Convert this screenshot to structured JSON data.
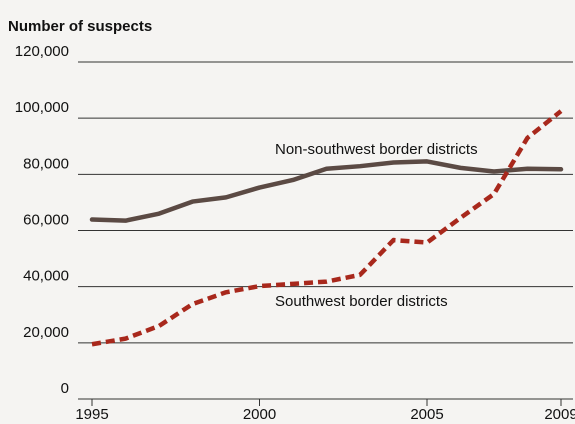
{
  "chart_data": {
    "type": "line",
    "title": "Number of suspects",
    "xlabel": "",
    "ylabel": "",
    "xlim": [
      1995,
      2009
    ],
    "ylim": [
      0,
      120000
    ],
    "x_ticks": [
      "1995",
      "2000",
      "2005",
      "2009"
    ],
    "y_ticks": [
      "0",
      "20,000",
      "40,000",
      "60,000",
      "80,000",
      "100,000",
      "120,000"
    ],
    "grid": true,
    "x": [
      1995,
      1996,
      1997,
      1998,
      1999,
      2000,
      2001,
      2002,
      2003,
      2004,
      2005,
      2006,
      2007,
      2008,
      2009
    ],
    "series": [
      {
        "name": "Non-southwest border districts",
        "color": "#5b4a44",
        "style": "solid",
        "values": [
          63900,
          63500,
          66000,
          70300,
          71800,
          75300,
          78000,
          82000,
          82900,
          84200,
          84600,
          82300,
          81000,
          82000,
          81800
        ]
      },
      {
        "name": "Southwest border districts",
        "color": "#a8281c",
        "style": "dashed",
        "values": [
          19500,
          21500,
          26000,
          33800,
          38000,
          40200,
          41000,
          41800,
          44200,
          56600,
          55700,
          64500,
          73000,
          93000,
          102500
        ]
      }
    ]
  }
}
